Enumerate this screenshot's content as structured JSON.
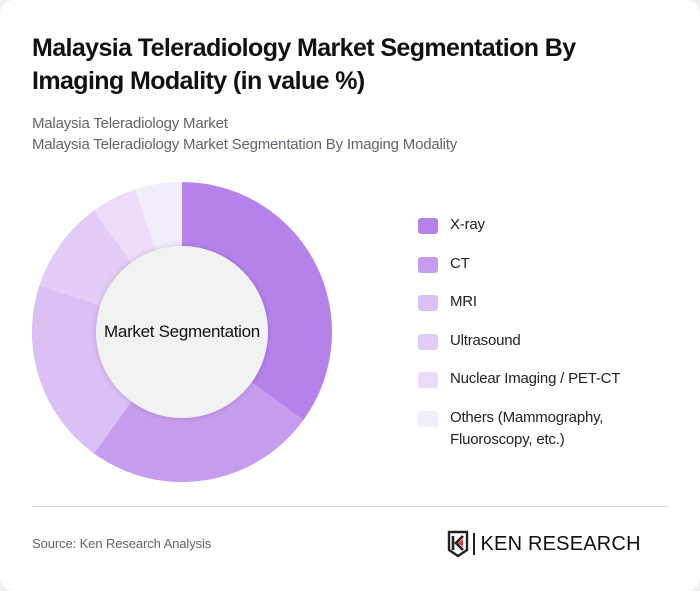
{
  "header": {
    "title": "Malaysia Teleradiology Market Segmentation By Imaging Modality (in value %)",
    "subtitle_line1": "Malaysia Teleradiology Market",
    "subtitle_line2": "Malaysia Teleradiology Market Segmentation By Imaging Modality"
  },
  "chart_data": {
    "type": "pie",
    "variant": "donut",
    "title": "Malaysia Teleradiology Market Segmentation By Imaging Modality (in value %)",
    "center_label": "Market Segmentation",
    "categories": [
      "X-ray",
      "CT",
      "MRI",
      "Ultrasound",
      "Nuclear Imaging / PET-CT",
      "Others (Mammography, Fluoroscopy, etc.)"
    ],
    "values": [
      35,
      25,
      20,
      10,
      5,
      5
    ],
    "colors": [
      "#b582ea",
      "#c69cee",
      "#dac0f5",
      "#e3cdf6",
      "#ecdcf9",
      "#f3ecfb"
    ],
    "legend_position": "right",
    "start_angle": "top, clockwise"
  },
  "legend": {
    "items": [
      {
        "label": "X-ray",
        "color": "#b582ea"
      },
      {
        "label": "CT",
        "color": "#c69cee"
      },
      {
        "label": "MRI",
        "color": "#dac0f5"
      },
      {
        "label": "Ultrasound",
        "color": "#e3cdf6"
      },
      {
        "label": "Nuclear Imaging / PET-CT",
        "color": "#ecdcf9"
      },
      {
        "label": "Others (Mammography, Fluoroscopy, etc.)",
        "color": "#f3ecfb"
      }
    ]
  },
  "footer": {
    "source": "Source: Ken Research Analysis",
    "logo_text": "KEN RESEARCH"
  }
}
